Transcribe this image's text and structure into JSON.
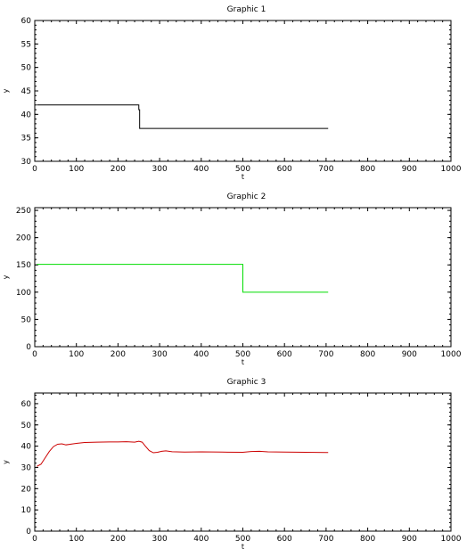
{
  "chart_data": [
    {
      "type": "line",
      "title": "Graphic 1",
      "xlabel": "t",
      "ylabel": "y",
      "xlim": [
        0,
        1000
      ],
      "ylim": [
        30,
        60
      ],
      "xticks": [
        0,
        100,
        200,
        300,
        400,
        500,
        600,
        700,
        800,
        900,
        1000
      ],
      "yticks": [
        30,
        35,
        40,
        45,
        50,
        55,
        60
      ],
      "grid": false,
      "series": [
        {
          "color": "#000000",
          "x": [
            5,
            250,
            250,
            252,
            252,
            705
          ],
          "y": [
            42,
            42,
            41,
            41,
            37,
            37
          ]
        }
      ]
    },
    {
      "type": "line",
      "title": "Graphic 2",
      "xlabel": "t",
      "ylabel": "y",
      "xlim": [
        0,
        1000
      ],
      "ylim": [
        0,
        255
      ],
      "xticks": [
        0,
        100,
        200,
        300,
        400,
        500,
        600,
        700,
        800,
        900,
        1000
      ],
      "yticks": [
        0,
        50,
        100,
        150,
        200,
        250
      ],
      "grid": false,
      "series": [
        {
          "color": "#00dd00",
          "x": [
            5,
            500,
            500,
            705
          ],
          "y": [
            151,
            151,
            100,
            100
          ]
        }
      ]
    },
    {
      "type": "line",
      "title": "Graphic 3",
      "xlabel": "t",
      "ylabel": "y",
      "xlim": [
        0,
        1000
      ],
      "ylim": [
        0,
        65
      ],
      "xticks": [
        0,
        100,
        200,
        300,
        400,
        500,
        600,
        700,
        800,
        900,
        1000
      ],
      "yticks": [
        0,
        10,
        20,
        30,
        40,
        50,
        60
      ],
      "grid": false,
      "series": [
        {
          "color": "#cc0000",
          "x": [
            5,
            15,
            25,
            35,
            45,
            55,
            65,
            75,
            85,
            100,
            120,
            150,
            180,
            200,
            220,
            240,
            250,
            258,
            265,
            275,
            285,
            295,
            305,
            315,
            330,
            360,
            400,
            450,
            500,
            520,
            540,
            560,
            600,
            650,
            700,
            705
          ],
          "y": [
            30.5,
            31.5,
            34.5,
            37.5,
            39.8,
            40.9,
            41.1,
            40.6,
            40.9,
            41.3,
            41.7,
            41.9,
            42.0,
            42.0,
            42.1,
            41.9,
            42.3,
            41.9,
            40.2,
            37.9,
            36.9,
            37.1,
            37.6,
            37.8,
            37.4,
            37.2,
            37.3,
            37.2,
            37.1,
            37.5,
            37.6,
            37.3,
            37.2,
            37.1,
            37.0,
            37.0
          ]
        }
      ]
    }
  ]
}
